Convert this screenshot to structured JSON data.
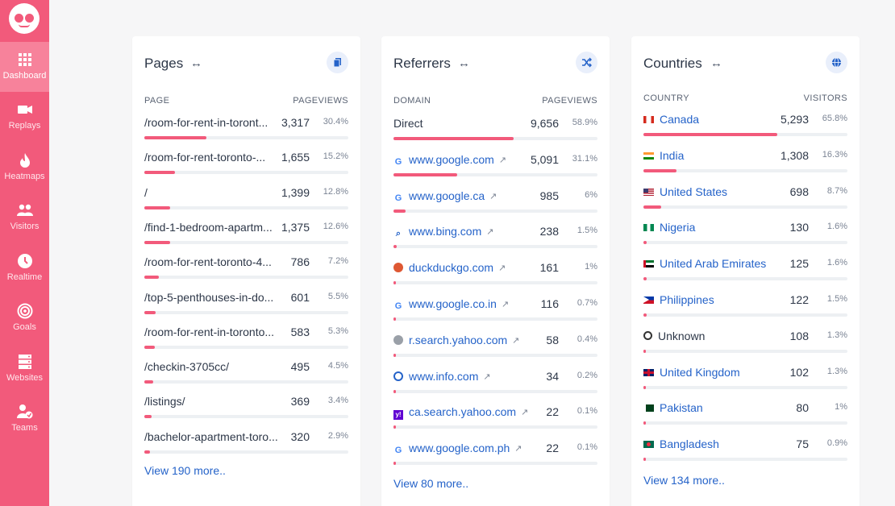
{
  "sidebar": {
    "items": [
      {
        "label": "Dashboard",
        "icon": "grid-icon",
        "active": true
      },
      {
        "label": "Replays",
        "icon": "video-icon",
        "active": false
      },
      {
        "label": "Heatmaps",
        "icon": "flame-icon",
        "active": false
      },
      {
        "label": "Visitors",
        "icon": "users-icon",
        "active": false
      },
      {
        "label": "Realtime",
        "icon": "clock-icon",
        "active": false
      },
      {
        "label": "Goals",
        "icon": "target-icon",
        "active": false
      },
      {
        "label": "Websites",
        "icon": "server-icon",
        "active": false
      },
      {
        "label": "Teams",
        "icon": "team-icon",
        "active": false
      }
    ]
  },
  "colors": {
    "accent": "#f25a7b",
    "link": "#2563c9",
    "track": "#edf0f3"
  },
  "pages": {
    "title": "Pages",
    "col_left": "PAGE",
    "col_right": "PAGEVIEWS",
    "rows": [
      {
        "label": "/room-for-rent-in-toront...",
        "value": "3,317",
        "pct": "30.4%",
        "fill": 0.304
      },
      {
        "label": "/room-for-rent-toronto-...",
        "value": "1,655",
        "pct": "15.2%",
        "fill": 0.152
      },
      {
        "label": "/",
        "value": "1,399",
        "pct": "12.8%",
        "fill": 0.128
      },
      {
        "label": "/find-1-bedroom-apartm...",
        "value": "1,375",
        "pct": "12.6%",
        "fill": 0.126
      },
      {
        "label": "/room-for-rent-toronto-4...",
        "value": "786",
        "pct": "7.2%",
        "fill": 0.072
      },
      {
        "label": "/top-5-penthouses-in-do...",
        "value": "601",
        "pct": "5.5%",
        "fill": 0.055
      },
      {
        "label": "/room-for-rent-in-toronto...",
        "value": "583",
        "pct": "5.3%",
        "fill": 0.053
      },
      {
        "label": "/checkin-3705cc/",
        "value": "495",
        "pct": "4.5%",
        "fill": 0.045
      },
      {
        "label": "/listings/",
        "value": "369",
        "pct": "3.4%",
        "fill": 0.034
      },
      {
        "label": "/bachelor-apartment-toro...",
        "value": "320",
        "pct": "2.9%",
        "fill": 0.029
      }
    ],
    "view_more": "View 190 more.."
  },
  "referrers": {
    "title": "Referrers",
    "col_left": "DOMAIN",
    "col_right": "PAGEVIEWS",
    "rows": [
      {
        "label": "Direct",
        "value": "9,656",
        "pct": "58.9%",
        "fill": 0.589,
        "icon": "",
        "link": false
      },
      {
        "label": "www.google.com",
        "value": "5,091",
        "pct": "31.1%",
        "fill": 0.311,
        "icon": "google-icon",
        "link": true
      },
      {
        "label": "www.google.ca",
        "value": "985",
        "pct": "6%",
        "fill": 0.06,
        "icon": "google-icon",
        "link": true
      },
      {
        "label": "www.bing.com",
        "value": "238",
        "pct": "1.5%",
        "fill": 0.015,
        "icon": "bing-icon",
        "link": true
      },
      {
        "label": "duckduckgo.com",
        "value": "161",
        "pct": "1%",
        "fill": 0.01,
        "icon": "duckduckgo-icon",
        "link": true
      },
      {
        "label": "www.google.co.in",
        "value": "116",
        "pct": "0.7%",
        "fill": 0.007,
        "icon": "google-icon",
        "link": true
      },
      {
        "label": "r.search.yahoo.com",
        "value": "58",
        "pct": "0.4%",
        "fill": 0.004,
        "icon": "yahoo-search-icon",
        "link": true
      },
      {
        "label": "www.info.com",
        "value": "34",
        "pct": "0.2%",
        "fill": 0.002,
        "icon": "info-icon",
        "link": true
      },
      {
        "label": "ca.search.yahoo.com",
        "value": "22",
        "pct": "0.1%",
        "fill": 0.001,
        "icon": "yahoo-icon",
        "link": true
      },
      {
        "label": "www.google.com.ph",
        "value": "22",
        "pct": "0.1%",
        "fill": 0.001,
        "icon": "google-icon",
        "link": true
      }
    ],
    "view_more": "View 80 more.."
  },
  "countries": {
    "title": "Countries",
    "col_left": "COUNTRY",
    "col_right": "VISITORS",
    "rows": [
      {
        "label": "Canada",
        "value": "5,293",
        "pct": "65.8%",
        "fill": 0.658,
        "flag": "ca",
        "link": true
      },
      {
        "label": "India",
        "value": "1,308",
        "pct": "16.3%",
        "fill": 0.163,
        "flag": "in",
        "link": true
      },
      {
        "label": "United States",
        "value": "698",
        "pct": "8.7%",
        "fill": 0.087,
        "flag": "us",
        "link": true
      },
      {
        "label": "Nigeria",
        "value": "130",
        "pct": "1.6%",
        "fill": 0.016,
        "flag": "ng",
        "link": true
      },
      {
        "label": "United Arab Emirates",
        "value": "125",
        "pct": "1.6%",
        "fill": 0.016,
        "flag": "ae",
        "link": true
      },
      {
        "label": "Philippines",
        "value": "122",
        "pct": "1.5%",
        "fill": 0.015,
        "flag": "ph",
        "link": true
      },
      {
        "label": "Unknown",
        "value": "108",
        "pct": "1.3%",
        "fill": 0.013,
        "flag": "unknown",
        "link": false
      },
      {
        "label": "United Kingdom",
        "value": "102",
        "pct": "1.3%",
        "fill": 0.013,
        "flag": "gb",
        "link": true
      },
      {
        "label": "Pakistan",
        "value": "80",
        "pct": "1%",
        "fill": 0.01,
        "flag": "pk",
        "link": true
      },
      {
        "label": "Bangladesh",
        "value": "75",
        "pct": "0.9%",
        "fill": 0.009,
        "flag": "bd",
        "link": true
      }
    ],
    "view_more": "View 134 more.."
  }
}
